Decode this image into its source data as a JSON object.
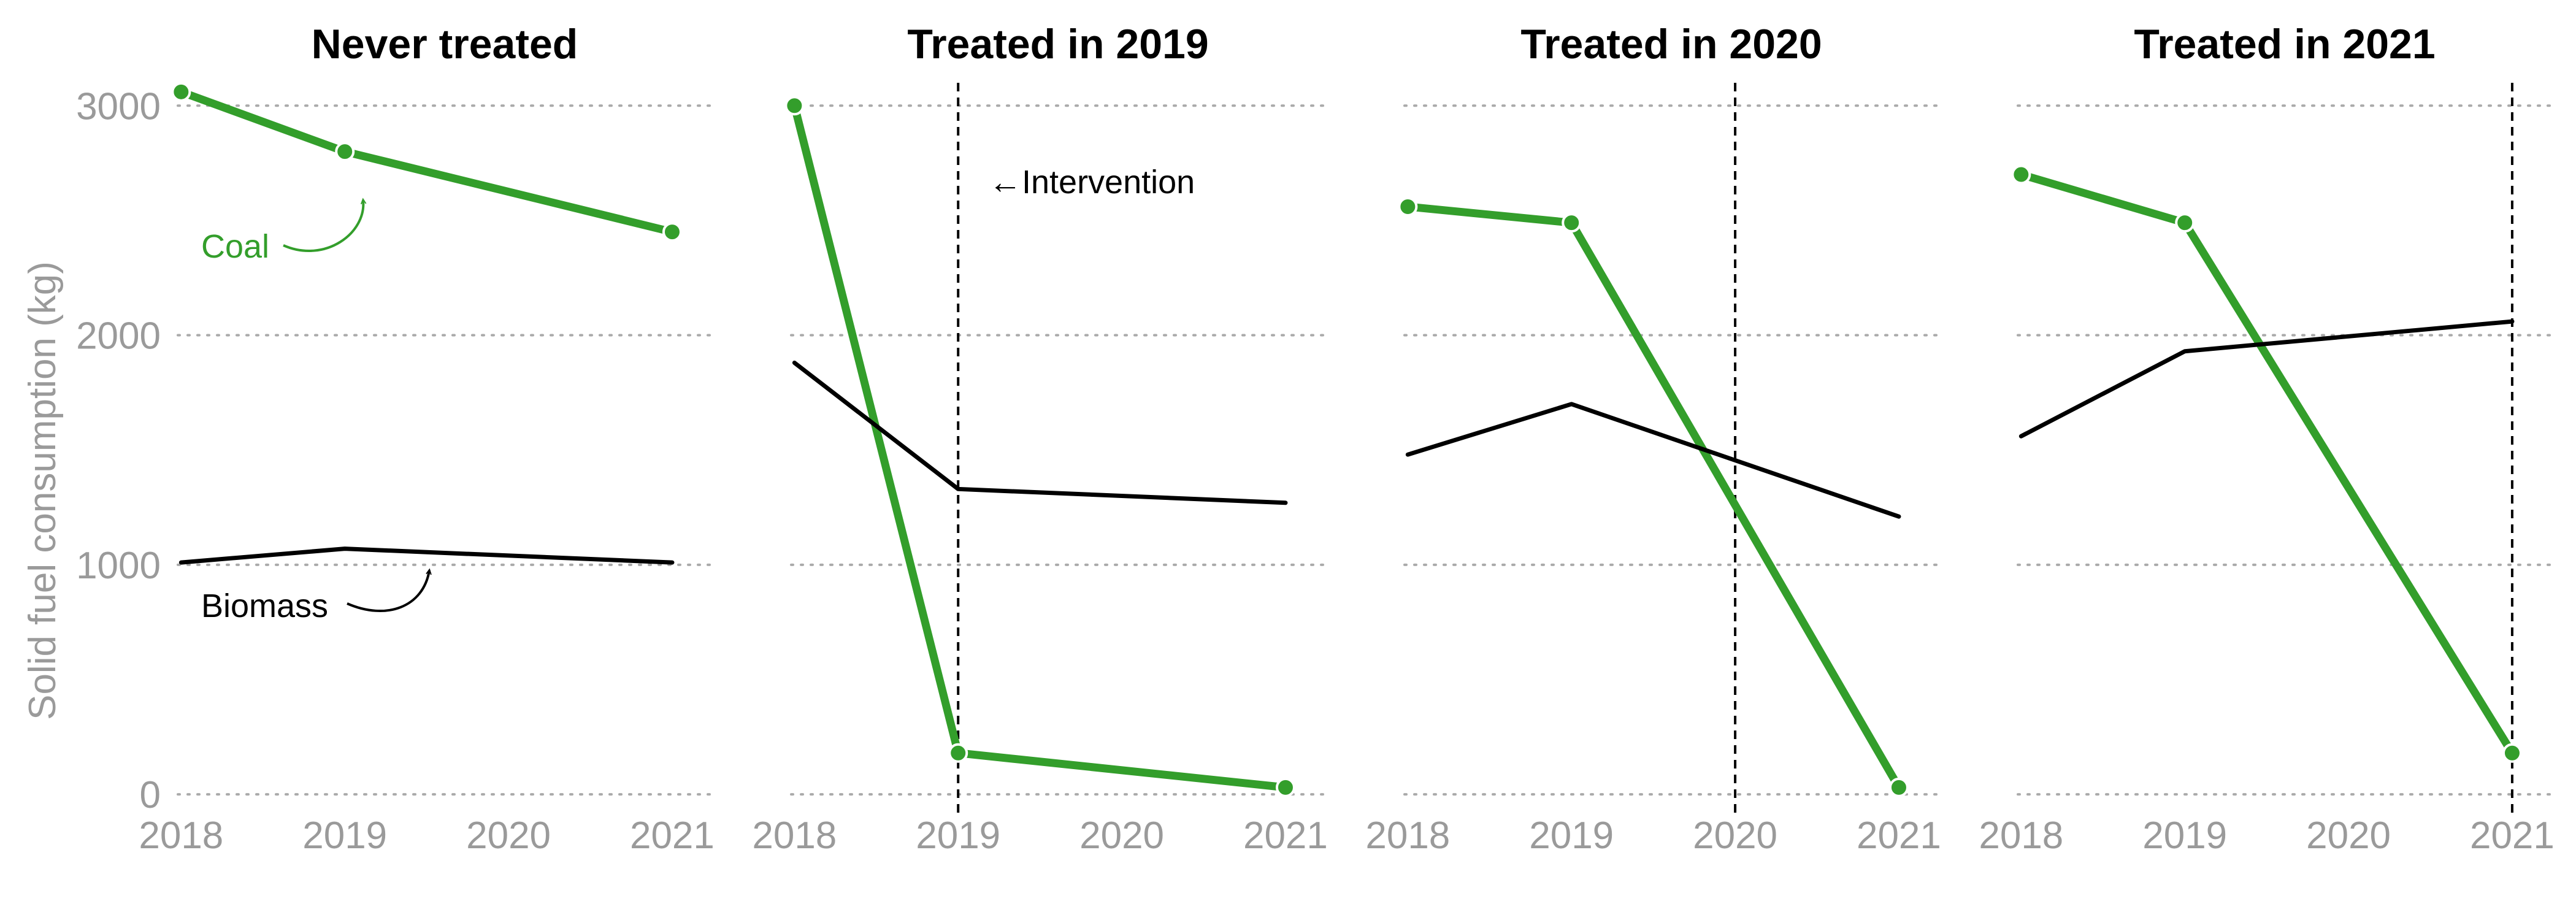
{
  "colors": {
    "coal": "#339e2b",
    "biomass": "#000000",
    "axis_text": "#9a9a9a",
    "grid": "#aaaaaa"
  },
  "annotations": {
    "coal": "Coal",
    "biomass": "Biomass",
    "intervention": "←Intervention"
  },
  "chart_data": {
    "type": "line",
    "ylabel": "Solid fuel consumption (kg)",
    "ylim": [
      -120,
      3300
    ],
    "yticks": [
      0,
      1000,
      2000,
      3000
    ],
    "xticks": [
      2018,
      2019,
      2020,
      2021
    ],
    "xlim": [
      2017.98,
      2021.24
    ],
    "grid": "horizontal dotted",
    "panels": [
      {
        "title": "Never treated",
        "intervention_year": null,
        "series": [
          {
            "name": "Coal",
            "x": [
              2018,
              2019,
              2021
            ],
            "y": [
              3060,
              2800,
              2450
            ]
          },
          {
            "name": "Biomass",
            "x": [
              2018,
              2019,
              2021
            ],
            "y": [
              1010,
              1070,
              1010
            ]
          }
        ]
      },
      {
        "title": "Treated in 2019",
        "intervention_year": 2019,
        "series": [
          {
            "name": "Coal",
            "x": [
              2018,
              2019,
              2021
            ],
            "y": [
              3000,
              180,
              30
            ]
          },
          {
            "name": "Biomass",
            "x": [
              2018,
              2019,
              2021
            ],
            "y": [
              1880,
              1330,
              1270
            ]
          }
        ]
      },
      {
        "title": "Treated in 2020",
        "intervention_year": 2020,
        "series": [
          {
            "name": "Coal",
            "x": [
              2018,
              2019,
              2021
            ],
            "y": [
              2560,
              2490,
              30
            ]
          },
          {
            "name": "Biomass",
            "x": [
              2018,
              2019,
              2021
            ],
            "y": [
              1480,
              1700,
              1210
            ]
          }
        ]
      },
      {
        "title": "Treated in 2021",
        "intervention_year": 2021,
        "series": [
          {
            "name": "Coal",
            "x": [
              2018,
              2019,
              2021
            ],
            "y": [
              2700,
              2490,
              180
            ]
          },
          {
            "name": "Biomass",
            "x": [
              2018,
              2019,
              2021
            ],
            "y": [
              1560,
              1930,
              2060
            ]
          }
        ]
      }
    ]
  }
}
